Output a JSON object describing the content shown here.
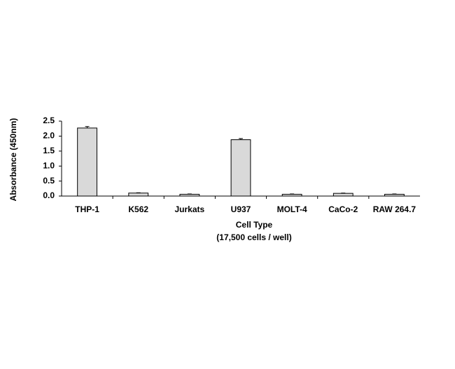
{
  "chart_data": {
    "type": "bar",
    "categories": [
      "THP-1",
      "K562",
      "Jurkats",
      "U937",
      "MOLT-4",
      "CaCo-2",
      "RAW 264.7"
    ],
    "values": [
      2.27,
      0.1,
      0.06,
      1.88,
      0.06,
      0.09,
      0.06
    ],
    "errors": [
      0.05,
      0.01,
      0.01,
      0.04,
      0.01,
      0.01,
      0.01
    ],
    "color": "#d9d9d9",
    "x_label": "Cell Type",
    "x_sublabel": "(17,500 cells / well)",
    "y_label": "Absorbance (450nm)",
    "ylim": [
      0,
      2.5
    ],
    "yticks": [
      {
        "value": 0,
        "label": "0.0"
      },
      0.5,
      {
        "value": 1,
        "label": "1.0"
      },
      1.5,
      {
        "value": 2,
        "label": "2.0"
      },
      2.5
    ],
    "grid": false
  }
}
